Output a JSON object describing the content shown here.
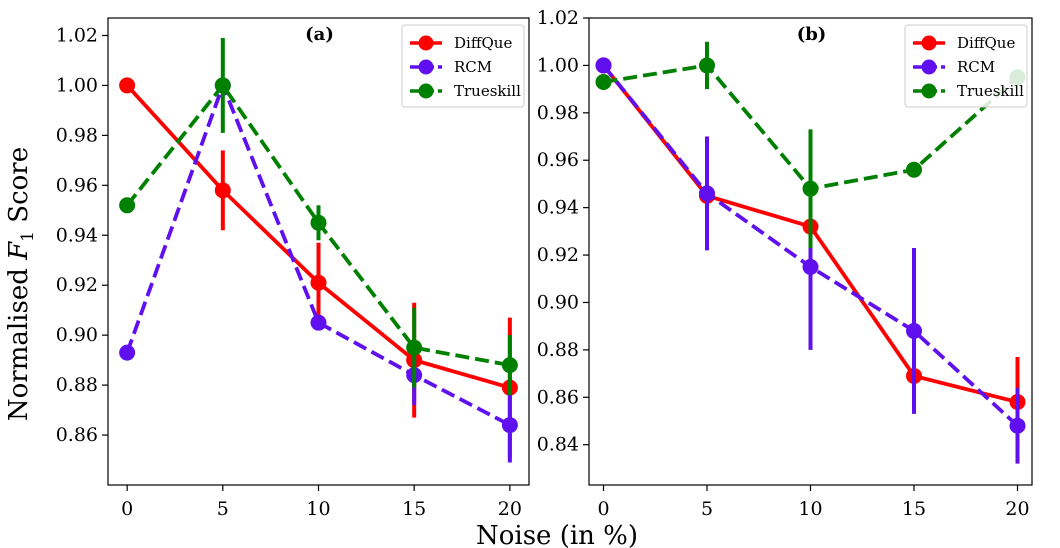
{
  "chart_data": [
    {
      "type": "line",
      "panel_label": "(a)",
      "x": [
        0,
        5,
        10,
        15,
        20
      ],
      "xticks": [
        "0",
        "5",
        "10",
        "15",
        "20"
      ],
      "ylim": [
        0.84,
        1.027
      ],
      "yticks": [
        "0.86",
        "0.88",
        "0.90",
        "0.92",
        "0.94",
        "0.96",
        "0.98",
        "1.00",
        "1.02"
      ],
      "legend_position": "top-right",
      "series": [
        {
          "name": "DiffQue",
          "color": "#ff0000",
          "dash": "solid",
          "values": [
            1.0,
            0.958,
            0.921,
            0.89,
            0.879
          ],
          "errors": [
            0.0,
            0.016,
            0.016,
            0.023,
            0.028
          ]
        },
        {
          "name": "RCM",
          "color": "#6010ee",
          "dash": "dashed",
          "values": [
            0.893,
            1.0,
            0.905,
            0.884,
            0.864
          ],
          "errors": [
            0.0,
            0.0,
            0.0,
            0.012,
            0.015
          ]
        },
        {
          "name": "Trueskill",
          "color": "#008000",
          "dash": "dashed",
          "values": [
            0.952,
            1.0,
            0.945,
            0.895,
            0.888
          ],
          "errors": [
            0.0,
            0.019,
            0.007,
            0.016,
            0.012
          ]
        }
      ]
    },
    {
      "type": "line",
      "panel_label": "(b)",
      "x": [
        0,
        5,
        10,
        15,
        20
      ],
      "xticks": [
        "0",
        "5",
        "10",
        "15",
        "20"
      ],
      "ylim": [
        0.823,
        1.02
      ],
      "yticks": [
        "0.84",
        "0.86",
        "0.88",
        "0.90",
        "0.92",
        "0.94",
        "0.96",
        "0.98",
        "1.00",
        "1.02"
      ],
      "legend_position": "top-right",
      "series": [
        {
          "name": "DiffQue",
          "color": "#ff0000",
          "dash": "solid",
          "values": [
            1.0,
            0.945,
            0.932,
            0.869,
            0.858
          ],
          "errors": [
            0.0,
            0.0,
            0.0,
            0.0,
            0.019
          ]
        },
        {
          "name": "RCM",
          "color": "#6010ee",
          "dash": "dashed",
          "values": [
            1.0,
            0.946,
            0.915,
            0.888,
            0.848
          ],
          "errors": [
            0.0,
            0.024,
            0.035,
            0.035,
            0.016
          ]
        },
        {
          "name": "Trueskill",
          "color": "#008000",
          "dash": "dashed",
          "values": [
            0.993,
            1.0,
            0.948,
            0.956,
            0.995
          ],
          "errors": [
            0.0,
            0.01,
            0.025,
            0.0,
            0.0
          ]
        }
      ]
    }
  ],
  "ylabel": "Normalised F1 Score",
  "ylabel_parts": {
    "prefix": "Normalised ",
    "var": "F",
    "sub": "1",
    "suffix": " Score"
  },
  "xlabel": "Noise (in %)"
}
